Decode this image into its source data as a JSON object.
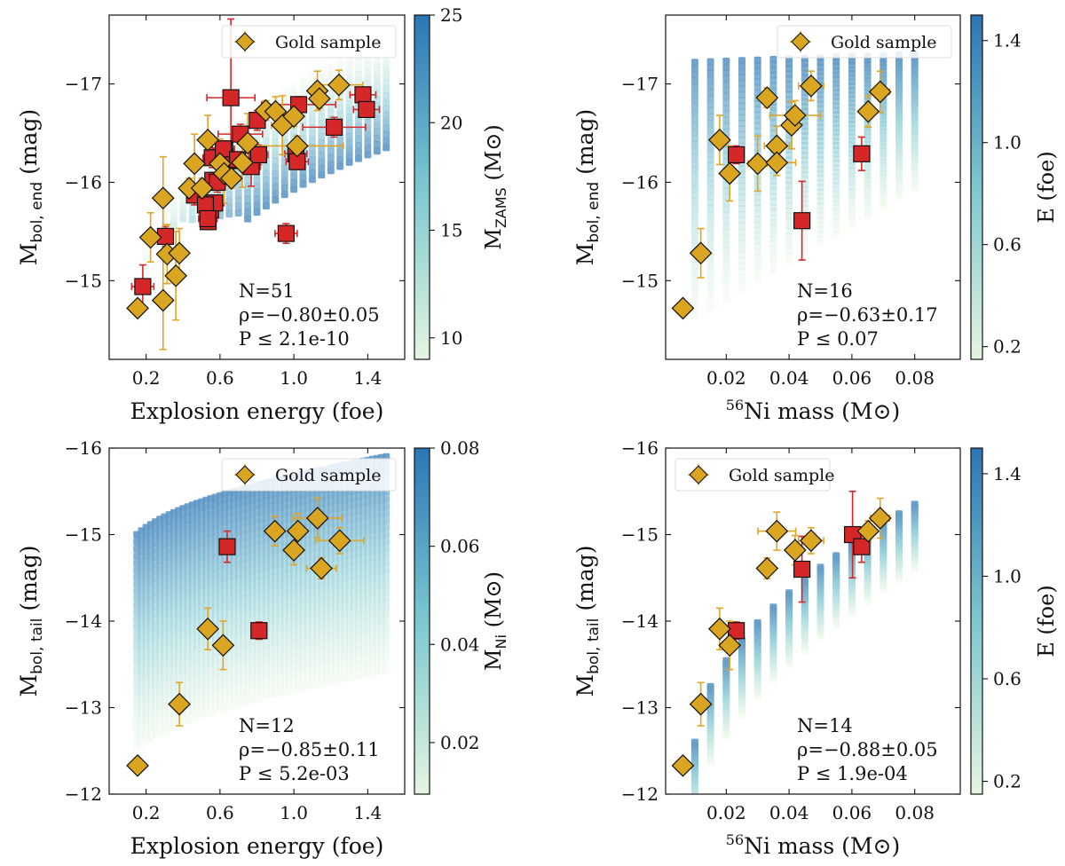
{
  "figure": {
    "legend_label": "Gold sample"
  },
  "chart_data": [
    {
      "type": "scatter",
      "panel": "top-left",
      "xlabel": "Explosion energy (foe)",
      "ylabel_main": "M",
      "ylabel_sub": "bol, end",
      "ylabel_tail": " (mag)",
      "xlim": [
        0.0,
        1.6
      ],
      "ylim": [
        -14.2,
        -17.7
      ],
      "xticks": [
        0.2,
        0.6,
        1.0,
        1.4
      ],
      "xtick_labels": [
        "0.2",
        "0.6",
        "1.0",
        "1.4"
      ],
      "yticks": [
        -17,
        -16,
        -15
      ],
      "ytick_labels": [
        "−17",
        "−16",
        "−15"
      ],
      "legend": {
        "label": "Gold sample",
        "position": "top-right"
      },
      "colorbar": {
        "label_main": "M",
        "label_sub": "ZAMS",
        "label_tail": " (M⊙)",
        "range": [
          9,
          25
        ],
        "ticks": [
          10,
          15,
          20,
          25
        ],
        "tick_labels": [
          "10",
          "15",
          "20",
          "25"
        ]
      },
      "stats": [
        "N=51",
        "ρ=−0.80±0.05",
        "P ≤ 2.1e-10"
      ],
      "gold": [
        {
          "x": 0.154,
          "y": -14.72,
          "xerr": 0,
          "yerr": 0
        },
        {
          "x": 0.224,
          "y": -15.44,
          "xerr": 0,
          "yerr": 0.25
        },
        {
          "x": 0.292,
          "y": -15.84,
          "xerr": 0,
          "yerr": 0.42
        },
        {
          "x": 0.292,
          "y": -14.8,
          "xerr": 0,
          "yerr": 0.5
        },
        {
          "x": 0.314,
          "y": -15.27,
          "xerr": 0,
          "yerr": 0.3
        },
        {
          "x": 0.38,
          "y": -15.28,
          "xerr": 0,
          "yerr": 0.25
        },
        {
          "x": 0.361,
          "y": -15.05,
          "xerr": 0,
          "yerr": 0.45
        },
        {
          "x": 0.433,
          "y": -15.94,
          "xerr": 0,
          "yerr": 0.1
        },
        {
          "x": 0.462,
          "y": -16.19,
          "xerr": 0,
          "yerr": 0.3
        },
        {
          "x": 0.503,
          "y": -15.94,
          "xerr": 0,
          "yerr": 0.1
        },
        {
          "x": 0.534,
          "y": -16.43,
          "xerr": 0,
          "yerr": 0.25
        },
        {
          "x": 0.6,
          "y": -16.19,
          "xerr": 0,
          "yerr": 0.25
        },
        {
          "x": 0.622,
          "y": -16.09,
          "xerr": 0,
          "yerr": 0.3
        },
        {
          "x": 0.662,
          "y": -16.04,
          "xerr": 0.05,
          "yerr": 0.1
        },
        {
          "x": 0.721,
          "y": -16.2,
          "xerr": 0,
          "yerr": 0.25
        },
        {
          "x": 0.75,
          "y": -16.4,
          "xerr": 0,
          "yerr": 0.3
        },
        {
          "x": 0.848,
          "y": -16.73,
          "xerr": 0,
          "yerr": 0.1
        },
        {
          "x": 0.901,
          "y": -16.72,
          "xerr": 0,
          "yerr": 0.15
        },
        {
          "x": 0.938,
          "y": -16.58,
          "xerr": 0.06,
          "yerr": 0.3
        },
        {
          "x": 1.0,
          "y": -16.67,
          "xerr": 0,
          "yerr": 0.1
        },
        {
          "x": 1.018,
          "y": -16.37,
          "xerr": 0.25,
          "yerr": 0.1
        },
        {
          "x": 1.127,
          "y": -16.93,
          "xerr": 0,
          "yerr": 0.2
        },
        {
          "x": 1.138,
          "y": -16.85,
          "xerr": 0,
          "yerr": 0.1
        },
        {
          "x": 1.244,
          "y": -16.99,
          "xerr": 0.13,
          "yerr": 0.15
        }
      ],
      "red": [
        {
          "x": 0.182,
          "y": -14.94,
          "xerr": 0.06,
          "yerr": 0.22
        },
        {
          "x": 0.305,
          "y": -15.45,
          "xerr": 0,
          "yerr": 0.1
        },
        {
          "x": 0.462,
          "y": -15.87,
          "xerr": 0,
          "yerr": 0.1
        },
        {
          "x": 0.536,
          "y": -15.6,
          "xerr": 0,
          "yerr": 0.08
        },
        {
          "x": 0.549,
          "y": -15.72,
          "xerr": 0,
          "yerr": 0.08
        },
        {
          "x": 0.561,
          "y": -16.02,
          "xerr": 0.03,
          "yerr": 0.08
        },
        {
          "x": 0.571,
          "y": -15.79,
          "xerr": 0.05,
          "yerr": 0.08
        },
        {
          "x": 0.558,
          "y": -16.25,
          "xerr": 0.05,
          "yerr": 0.1
        },
        {
          "x": 0.585,
          "y": -16.0,
          "xerr": 0.05,
          "yerr": 0.1
        },
        {
          "x": 0.626,
          "y": -16.32,
          "xerr": 0.05,
          "yerr": 0.1
        },
        {
          "x": 0.659,
          "y": -16.86,
          "xerr": 0.13,
          "yerr": 0.8
        },
        {
          "x": 0.659,
          "y": -16.22,
          "xerr": 0.07,
          "yerr": 0.1
        },
        {
          "x": 0.71,
          "y": -16.49,
          "xerr": 0.12,
          "yerr": 0.1
        },
        {
          "x": 0.769,
          "y": -16.16,
          "xerr": 0.05,
          "yerr": 0.2
        },
        {
          "x": 0.802,
          "y": -16.63,
          "xerr": 0.03,
          "yerr": 0.1
        },
        {
          "x": 0.809,
          "y": -16.28,
          "xerr": 0.05,
          "yerr": 0.1
        },
        {
          "x": 0.958,
          "y": -15.48,
          "xerr": 0.06,
          "yerr": 0.1
        },
        {
          "x": 1.011,
          "y": -16.29,
          "xerr": 0.06,
          "yerr": 0.1
        },
        {
          "x": 1.018,
          "y": -16.21,
          "xerr": 0.06,
          "yerr": 0.08
        },
        {
          "x": 1.026,
          "y": -16.79,
          "xerr": 0.2,
          "yerr": 0.08
        },
        {
          "x": 1.218,
          "y": -16.56,
          "xerr": 0.17,
          "yerr": 0.1
        },
        {
          "x": 1.374,
          "y": -16.89,
          "xerr": 0.07,
          "yerr": 0.05
        },
        {
          "x": 1.393,
          "y": -16.74,
          "xerr": 0.07,
          "yerr": 0.05
        },
        {
          "x": 0.521,
          "y": -15.77,
          "xerr": 0,
          "yerr": 0.08
        },
        {
          "x": 0.534,
          "y": -15.63,
          "xerr": 0.05,
          "yerr": 0.08
        },
        {
          "x": 0.618,
          "y": -16.34,
          "xerr": 0.06,
          "yerr": 0.08
        },
        {
          "x": 0.695,
          "y": -16.23,
          "xerr": 0.06,
          "yerr": 0.08
        }
      ],
      "model": {
        "kind": "energy-mzams",
        "x_range": [
          0.15,
          1.5
        ],
        "x_step": 0.05,
        "c_range": [
          9,
          25
        ]
      }
    },
    {
      "type": "scatter",
      "panel": "top-right",
      "xlabel_sup": "56",
      "xlabel": "Ni mass (M⊙)",
      "ylabel_main": "M",
      "ylabel_sub": "bol, end",
      "ylabel_tail": " (mag)",
      "xlim": [
        0.0007,
        0.0945
      ],
      "ylim": [
        -14.2,
        -17.7
      ],
      "xticks": [
        0.02,
        0.04,
        0.06,
        0.08
      ],
      "xtick_labels": [
        "0.02",
        "0.04",
        "0.06",
        "0.08"
      ],
      "yticks": [
        -17,
        -16,
        -15
      ],
      "ytick_labels": [
        "−17",
        "−16",
        "−15"
      ],
      "legend": {
        "label": "Gold sample",
        "position": "top-right"
      },
      "colorbar": {
        "label_main": "E (foe)",
        "label_sub": "",
        "label_tail": "",
        "range": [
          0.15,
          1.5
        ],
        "ticks": [
          0.2,
          0.6,
          1.0,
          1.4
        ],
        "tick_labels": [
          "0.2",
          "0.6",
          "1.0",
          "1.4"
        ]
      },
      "stats": [
        "N=16",
        "ρ=−0.63±0.17",
        "P ≤ 0.07"
      ],
      "gold": [
        {
          "x": 0.0062,
          "y": -14.72,
          "xerr": 0,
          "yerr": 0
        },
        {
          "x": 0.0119,
          "y": -15.28,
          "xerr": 0,
          "yerr": 0.25
        },
        {
          "x": 0.0179,
          "y": -16.43,
          "xerr": 0,
          "yerr": 0.25
        },
        {
          "x": 0.0211,
          "y": -16.09,
          "xerr": 0,
          "yerr": 0.28
        },
        {
          "x": 0.03,
          "y": -16.19,
          "xerr": 0.003,
          "yerr": 0.28
        },
        {
          "x": 0.033,
          "y": -16.86,
          "xerr": 0,
          "yerr": 0.1
        },
        {
          "x": 0.0361,
          "y": -16.37,
          "xerr": 0.004,
          "yerr": 0.2
        },
        {
          "x": 0.0361,
          "y": -16.2,
          "xerr": 0.006,
          "yerr": 0.13
        },
        {
          "x": 0.0408,
          "y": -16.58,
          "xerr": 0.002,
          "yerr": 0.24
        },
        {
          "x": 0.0419,
          "y": -16.68,
          "xerr": 0.008,
          "yerr": 0.15
        },
        {
          "x": 0.047,
          "y": -16.98,
          "xerr": 0.004,
          "yerr": 0.15
        },
        {
          "x": 0.0652,
          "y": -16.72,
          "xerr": 0,
          "yerr": 0.16
        },
        {
          "x": 0.069,
          "y": -16.92,
          "xerr": 0.003,
          "yerr": 0.21
        }
      ],
      "red": [
        {
          "x": 0.0232,
          "y": -16.28,
          "xerr": 0,
          "yerr": 0.09
        },
        {
          "x": 0.0441,
          "y": -15.61,
          "xerr": 0.002,
          "yerr": 0.4
        },
        {
          "x": 0.0631,
          "y": -16.29,
          "xerr": 0,
          "yerr": 0.17
        }
      ],
      "model": {
        "kind": "ni-end",
        "x_range": [
          0.01,
          0.08
        ],
        "x_step": 0.005,
        "c_range": [
          0.15,
          1.5
        ]
      }
    },
    {
      "type": "scatter",
      "panel": "bottom-left",
      "xlabel": "Explosion energy (foe)",
      "ylabel_main": "M",
      "ylabel_sub": "bol, tail",
      "ylabel_tail": " (mag)",
      "xlim": [
        0.0,
        1.6
      ],
      "ylim": [
        -12,
        -16
      ],
      "xticks": [
        0.2,
        0.6,
        1.0,
        1.4
      ],
      "xtick_labels": [
        "0.2",
        "0.6",
        "1.0",
        "1.4"
      ],
      "yticks": [
        -16,
        -15,
        -14,
        -13,
        -12
      ],
      "ytick_labels": [
        "−16",
        "−15",
        "−14",
        "−13",
        "−12"
      ],
      "legend": {
        "label": "Gold sample",
        "position": "top-right"
      },
      "colorbar": {
        "label_main": "M",
        "label_sub": "Ni",
        "label_tail": " (M⊙)",
        "range": [
          0.0095,
          0.08
        ],
        "ticks": [
          0.02,
          0.04,
          0.06,
          0.08
        ],
        "tick_labels": [
          "0.02",
          "0.04",
          "0.06",
          "0.08"
        ]
      },
      "stats": [
        "N=12",
        "ρ=−0.85±0.11",
        "P ≤ 5.2e-03"
      ],
      "gold": [
        {
          "x": 0.154,
          "y": -12.33,
          "xerr": 0,
          "yerr": 0
        },
        {
          "x": 0.38,
          "y": -13.04,
          "xerr": 0,
          "yerr": 0.25
        },
        {
          "x": 0.534,
          "y": -13.91,
          "xerr": 0,
          "yerr": 0.24
        },
        {
          "x": 0.617,
          "y": -13.72,
          "xerr": 0.04,
          "yerr": 0.28
        },
        {
          "x": 0.897,
          "y": -15.04,
          "xerr": 0,
          "yerr": 0.17
        },
        {
          "x": 1.0,
          "y": -14.82,
          "xerr": 0.04,
          "yerr": 0.17
        },
        {
          "x": 1.022,
          "y": -15.04,
          "xerr": 0,
          "yerr": 0.2
        },
        {
          "x": 1.128,
          "y": -15.19,
          "xerr": 0.13,
          "yerr": 0.23
        },
        {
          "x": 1.149,
          "y": -14.61,
          "xerr": 0.08,
          "yerr": 0.12
        },
        {
          "x": 1.248,
          "y": -14.93,
          "xerr": 0.13,
          "yerr": 0.15
        }
      ],
      "red": [
        {
          "x": 0.639,
          "y": -14.86,
          "xerr": 0,
          "yerr": 0.18
        },
        {
          "x": 0.811,
          "y": -13.89,
          "xerr": 0,
          "yerr": 0.1
        }
      ],
      "model": {
        "kind": "energy-tail",
        "x_range": [
          0.15,
          1.5
        ],
        "x_step": 0.05,
        "c_range": [
          0.0095,
          0.08
        ]
      }
    },
    {
      "type": "scatter",
      "panel": "bottom-right",
      "xlabel_sup": "56",
      "xlabel": "Ni mass (M⊙)",
      "ylabel_main": "M",
      "ylabel_sub": "bol, tail",
      "ylabel_tail": " (mag)",
      "xlim": [
        0.0007,
        0.0945
      ],
      "ylim": [
        -12,
        -16
      ],
      "xticks": [
        0.02,
        0.04,
        0.06,
        0.08
      ],
      "xtick_labels": [
        "0.02",
        "0.04",
        "0.06",
        "0.08"
      ],
      "yticks": [
        -16,
        -15,
        -14,
        -13,
        -12
      ],
      "ytick_labels": [
        "−16",
        "−15",
        "−14",
        "−13",
        "−12"
      ],
      "legend": {
        "label": "Gold sample",
        "position": "top-left"
      },
      "colorbar": {
        "label_main": "E (foe)",
        "label_sub": "",
        "label_tail": "",
        "range": [
          0.15,
          1.5
        ],
        "ticks": [
          0.2,
          0.6,
          1.0,
          1.4
        ],
        "tick_labels": [
          "0.2",
          "0.6",
          "1.0",
          "1.4"
        ]
      },
      "stats": [
        "N=14",
        "ρ=−0.88±0.05",
        "P ≤ 1.9e-04"
      ],
      "gold": [
        {
          "x": 0.0062,
          "y": -12.33,
          "xerr": 0,
          "yerr": 0
        },
        {
          "x": 0.0119,
          "y": -13.04,
          "xerr": 0,
          "yerr": 0.25
        },
        {
          "x": 0.0179,
          "y": -13.91,
          "xerr": 0,
          "yerr": 0.24
        },
        {
          "x": 0.0211,
          "y": -13.72,
          "xerr": 0,
          "yerr": 0.28
        },
        {
          "x": 0.033,
          "y": -14.61,
          "xerr": 0,
          "yerr": 0.12
        },
        {
          "x": 0.0361,
          "y": -15.04,
          "xerr": 0.006,
          "yerr": 0.22
        },
        {
          "x": 0.0419,
          "y": -14.82,
          "xerr": 0.002,
          "yerr": 0.17
        },
        {
          "x": 0.047,
          "y": -14.93,
          "xerr": 0.004,
          "yerr": 0.15
        },
        {
          "x": 0.0652,
          "y": -15.04,
          "xerr": 0.002,
          "yerr": 0.12
        },
        {
          "x": 0.069,
          "y": -15.19,
          "xerr": 0.003,
          "yerr": 0.23
        }
      ],
      "red": [
        {
          "x": 0.0232,
          "y": -13.89,
          "xerr": 0,
          "yerr": 0.1
        },
        {
          "x": 0.0441,
          "y": -14.6,
          "xerr": 0.002,
          "yerr": 0.38
        },
        {
          "x": 0.0602,
          "y": -15.0,
          "xerr": 0.002,
          "yerr": 0.5
        },
        {
          "x": 0.0631,
          "y": -14.86,
          "xerr": 0,
          "yerr": 0.18
        }
      ],
      "model": {
        "kind": "ni-tail",
        "x_range": [
          0.01,
          0.08
        ],
        "x_step": 0.005,
        "c_range": [
          0.15,
          1.5
        ]
      }
    }
  ],
  "colors": {
    "gold_fill": "#DAA520",
    "gold_err": "#E0A526",
    "red_fill": "#D62728",
    "red_err": "#D62728",
    "cmap_low": "#E5F5E0",
    "cmap_mid": "#7CC8D0",
    "cmap_high": "#2B75B4"
  }
}
